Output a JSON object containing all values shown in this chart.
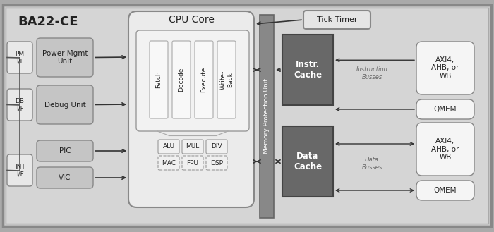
{
  "title": "BA22-CE",
  "cpu_core_label": "CPU Core",
  "tick_timer_label": "Tick Timer",
  "mpu_label": "Memory Protection Unit",
  "instr_cache_label": "Instr.\nCache",
  "data_cache_label": "Data\nCache",
  "instr_busses_label": "Instruction\nBusses",
  "data_busses_label": "Data\nBusses",
  "pipeline_stages": [
    "Fetch",
    "Decode",
    "Execute",
    "Write-\nBack"
  ],
  "alu_top": [
    "ALU",
    "MUL",
    "DIV"
  ],
  "alu_bot": [
    "MAC",
    "FPU",
    "DSP"
  ],
  "pm_if": "PM\nI/F",
  "db_if": "DB\nI/F",
  "int_if": "INT\nI/F",
  "power_mgmt": "Power Mgmt\nUnit",
  "debug_unit": "Debug Unit",
  "pic": "PIC",
  "vic": "VIC",
  "axi_label": "AXI4,\nAHB, or\nWB",
  "qmem_label": "QMEM",
  "bg_chip": "#c8c8c8",
  "bg_inner": "#d8d8d8",
  "bg_cpu_core": "#e8e8e8",
  "bg_pipeline_box": "#f0f0f0",
  "bg_pipeline_stage": "#ffffff",
  "bg_alu_solid": "#f0f0f0",
  "bg_alu_dashed": "#f0f0f0",
  "bg_mpu": "#888888",
  "bg_cache": "#686868",
  "bg_iface": "#e2e2e2",
  "bg_left_block": "#c8c8c8",
  "bg_tick": "#e8e8e8",
  "bg_right_box": "#f5f5f5",
  "ec_outer": "#888888",
  "ec_cpu": "#777777",
  "ec_pipeline": "#999999",
  "ec_cache": "#444444",
  "ec_mpu": "#666666",
  "text_white": "#ffffff",
  "text_dark": "#222222",
  "text_gray": "#666666",
  "arrow_color": "#333333"
}
